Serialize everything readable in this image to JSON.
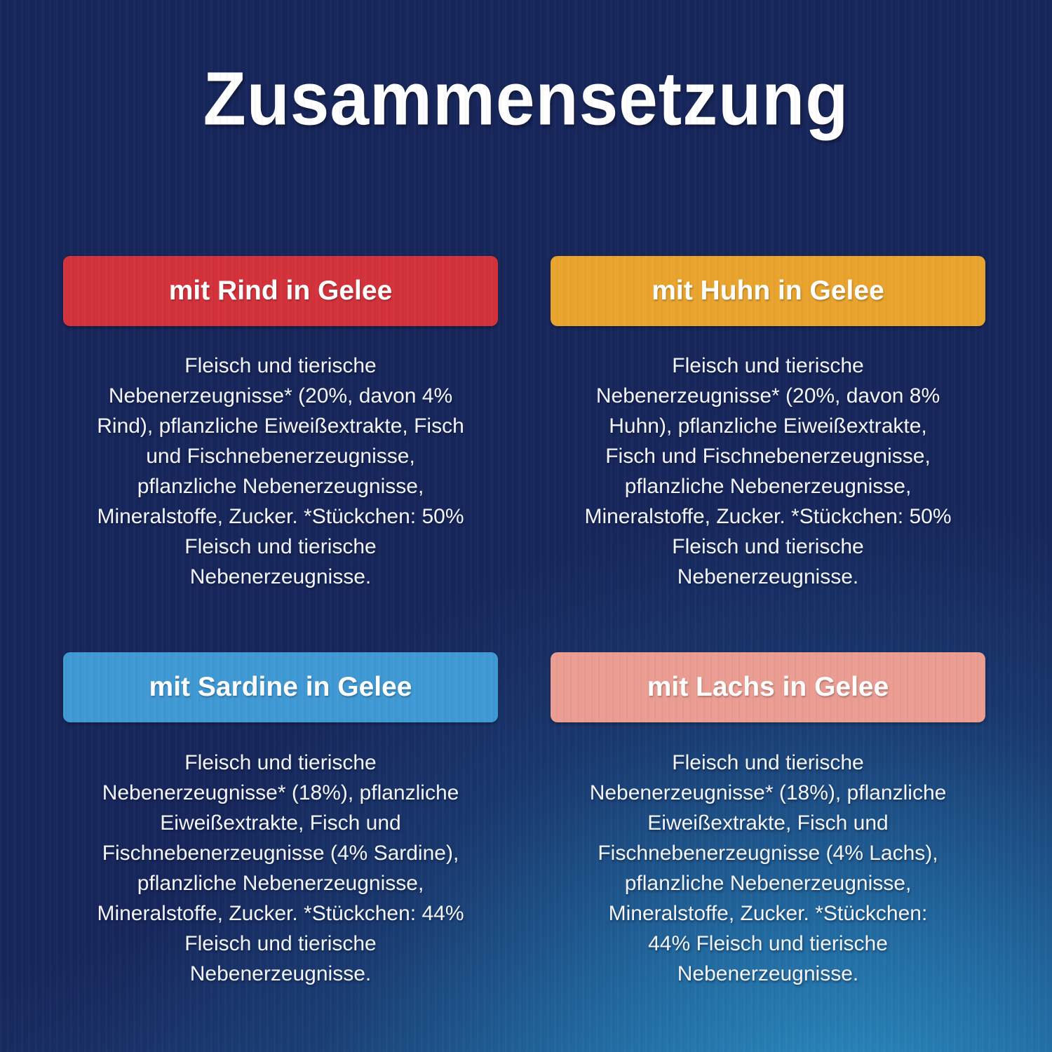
{
  "page": {
    "title": "Zusammensetzung"
  },
  "colors": {
    "background_navy": "#17265b",
    "background_glow_blue": "#2f9fd4",
    "text_white": "#f4f6fa",
    "badge_red": "#d4323b",
    "badge_orange": "#e9a42e",
    "badge_blue": "#3f99d4",
    "badge_pink": "#eb9d92"
  },
  "sections": [
    {
      "id": "rind",
      "label": "mit Rind in Gelee",
      "color": "#d4323b",
      "text": "Fleisch und tierische\nNebenerzeugnisse* (20%, davon 4%\nRind), pflanzliche Eiweißextrakte, Fisch\nund Fischnebenerzeugnisse,\npflanzliche Nebenerzeugnisse,\nMineralstoffe, Zucker. *Stückchen: 50%\nFleisch und tierische\nNebenerzeugnisse."
    },
    {
      "id": "huhn",
      "label": "mit Huhn in Gelee",
      "color": "#e9a42e",
      "text": "Fleisch und tierische\nNebenerzeugnisse* (20%, davon 8%\nHuhn), pflanzliche Eiweißextrakte,\nFisch und Fischnebenerzeugnisse,\npflanzliche Nebenerzeugnisse,\nMineralstoffe, Zucker. *Stückchen: 50%\nFleisch und tierische\nNebenerzeugnisse."
    },
    {
      "id": "sardine",
      "label": "mit Sardine in Gelee",
      "color": "#3f99d4",
      "text": "Fleisch und tierische\nNebenerzeugnisse* (18%), pflanzliche\nEiweißextrakte, Fisch und\nFischnebenerzeugnisse (4% Sardine),\npflanzliche Nebenerzeugnisse,\nMineralstoffe, Zucker. *Stückchen: 44%\nFleisch und tierische\nNebenerzeugnisse."
    },
    {
      "id": "lachs",
      "label": "mit Lachs in Gelee",
      "color": "#eb9d92",
      "text": "Fleisch und tierische\nNebenerzeugnisse* (18%), pflanzliche\nEiweißextrakte, Fisch und\nFischnebenerzeugnisse (4% Lachs),\npflanzliche Nebenerzeugnisse,\nMineralstoffe, Zucker. *Stückchen:\n44% Fleisch und tierische\nNebenerzeugnisse."
    }
  ]
}
